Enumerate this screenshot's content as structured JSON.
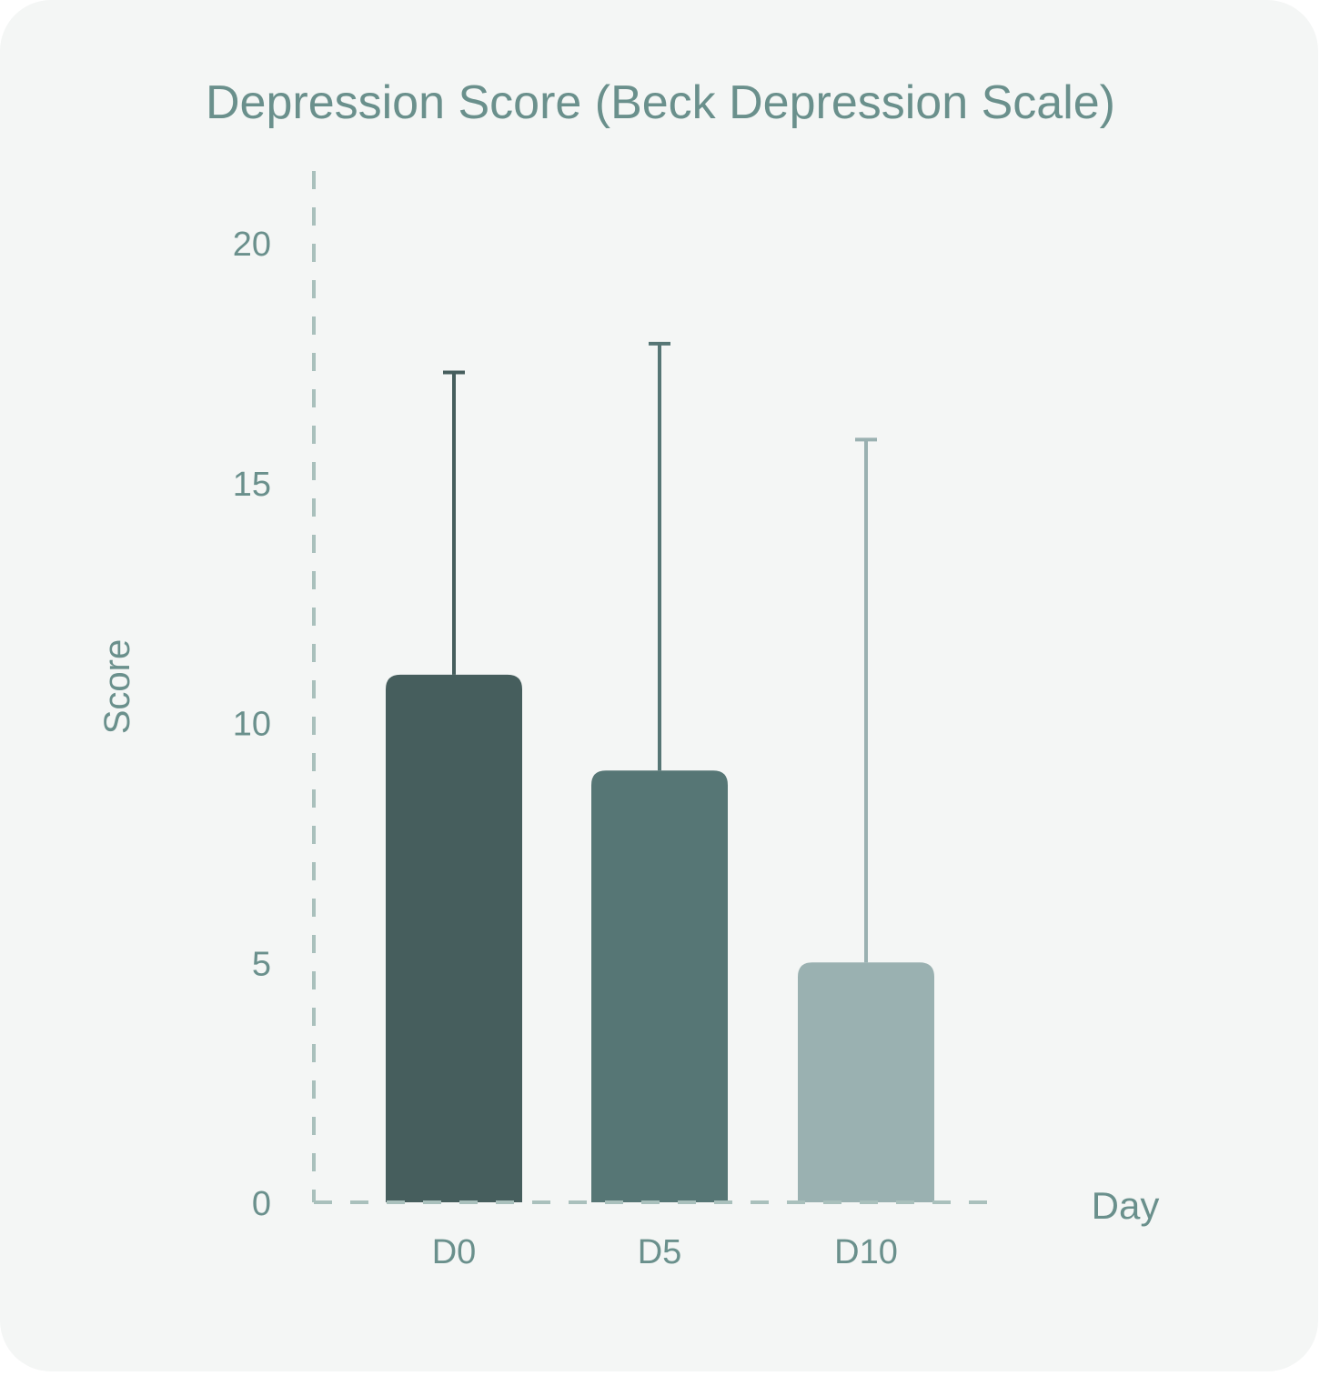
{
  "chart_data": {
    "type": "bar",
    "title": "Depression Score (Beck Depression Scale)",
    "xlabel": "Day",
    "ylabel": "Score",
    "categories": [
      "D0",
      "D5",
      "D10"
    ],
    "values": [
      11,
      9,
      5
    ],
    "error_upper": [
      17.3,
      17.9,
      15.9
    ],
    "ylim": [
      0,
      21.5
    ],
    "yticks": [
      0,
      5,
      10,
      15,
      20
    ],
    "ytick_labels": [
      "0",
      "5",
      "10",
      "15",
      "20"
    ],
    "grid": false,
    "legend": "none",
    "colors": {
      "bars": [
        "#465e5d",
        "#567675",
        "#9ab1b1"
      ],
      "error_bars": [
        "#465e5d",
        "#567675",
        "#9ab1b1"
      ],
      "text": "#6a908c",
      "axis": "#a9c0bc",
      "background": "#f4f6f5"
    }
  }
}
